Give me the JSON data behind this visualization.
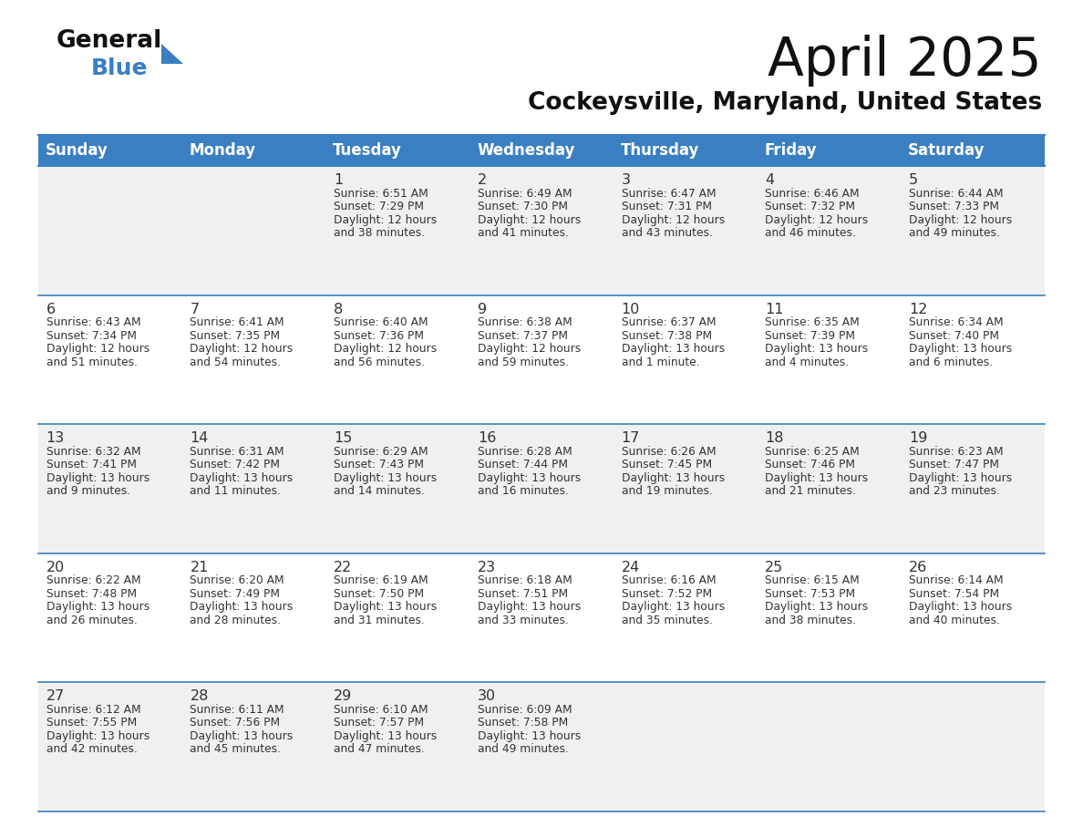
{
  "title": "April 2025",
  "subtitle": "Cockeysville, Maryland, United States",
  "header_bg": "#3A7FC1",
  "header_text_color": "#FFFFFF",
  "row_bg_even": "#F0F0F0",
  "row_bg_odd": "#FFFFFF",
  "border_color": "#3A7FC1",
  "day_headers": [
    "Sunday",
    "Monday",
    "Tuesday",
    "Wednesday",
    "Thursday",
    "Friday",
    "Saturday"
  ],
  "title_color": "#111111",
  "subtitle_color": "#111111",
  "cell_text_color": "#333333",
  "logo_general_color": "#111111",
  "logo_blue_color": "#3A7FC1",
  "logo_triangle_color": "#3A7FC1",
  "days": [
    {
      "day": null,
      "col": 0,
      "row": 0
    },
    {
      "day": null,
      "col": 1,
      "row": 0
    },
    {
      "day": 1,
      "col": 2,
      "row": 0,
      "sunrise": "6:51 AM",
      "sunset": "7:29 PM",
      "daylight_h": "12 hours",
      "daylight_m": "and 38 minutes."
    },
    {
      "day": 2,
      "col": 3,
      "row": 0,
      "sunrise": "6:49 AM",
      "sunset": "7:30 PM",
      "daylight_h": "12 hours",
      "daylight_m": "and 41 minutes."
    },
    {
      "day": 3,
      "col": 4,
      "row": 0,
      "sunrise": "6:47 AM",
      "sunset": "7:31 PM",
      "daylight_h": "12 hours",
      "daylight_m": "and 43 minutes."
    },
    {
      "day": 4,
      "col": 5,
      "row": 0,
      "sunrise": "6:46 AM",
      "sunset": "7:32 PM",
      "daylight_h": "12 hours",
      "daylight_m": "and 46 minutes."
    },
    {
      "day": 5,
      "col": 6,
      "row": 0,
      "sunrise": "6:44 AM",
      "sunset": "7:33 PM",
      "daylight_h": "12 hours",
      "daylight_m": "and 49 minutes."
    },
    {
      "day": 6,
      "col": 0,
      "row": 1,
      "sunrise": "6:43 AM",
      "sunset": "7:34 PM",
      "daylight_h": "12 hours",
      "daylight_m": "and 51 minutes."
    },
    {
      "day": 7,
      "col": 1,
      "row": 1,
      "sunrise": "6:41 AM",
      "sunset": "7:35 PM",
      "daylight_h": "12 hours",
      "daylight_m": "and 54 minutes."
    },
    {
      "day": 8,
      "col": 2,
      "row": 1,
      "sunrise": "6:40 AM",
      "sunset": "7:36 PM",
      "daylight_h": "12 hours",
      "daylight_m": "and 56 minutes."
    },
    {
      "day": 9,
      "col": 3,
      "row": 1,
      "sunrise": "6:38 AM",
      "sunset": "7:37 PM",
      "daylight_h": "12 hours",
      "daylight_m": "and 59 minutes."
    },
    {
      "day": 10,
      "col": 4,
      "row": 1,
      "sunrise": "6:37 AM",
      "sunset": "7:38 PM",
      "daylight_h": "13 hours",
      "daylight_m": "and 1 minute."
    },
    {
      "day": 11,
      "col": 5,
      "row": 1,
      "sunrise": "6:35 AM",
      "sunset": "7:39 PM",
      "daylight_h": "13 hours",
      "daylight_m": "and 4 minutes."
    },
    {
      "day": 12,
      "col": 6,
      "row": 1,
      "sunrise": "6:34 AM",
      "sunset": "7:40 PM",
      "daylight_h": "13 hours",
      "daylight_m": "and 6 minutes."
    },
    {
      "day": 13,
      "col": 0,
      "row": 2,
      "sunrise": "6:32 AM",
      "sunset": "7:41 PM",
      "daylight_h": "13 hours",
      "daylight_m": "and 9 minutes."
    },
    {
      "day": 14,
      "col": 1,
      "row": 2,
      "sunrise": "6:31 AM",
      "sunset": "7:42 PM",
      "daylight_h": "13 hours",
      "daylight_m": "and 11 minutes."
    },
    {
      "day": 15,
      "col": 2,
      "row": 2,
      "sunrise": "6:29 AM",
      "sunset": "7:43 PM",
      "daylight_h": "13 hours",
      "daylight_m": "and 14 minutes."
    },
    {
      "day": 16,
      "col": 3,
      "row": 2,
      "sunrise": "6:28 AM",
      "sunset": "7:44 PM",
      "daylight_h": "13 hours",
      "daylight_m": "and 16 minutes."
    },
    {
      "day": 17,
      "col": 4,
      "row": 2,
      "sunrise": "6:26 AM",
      "sunset": "7:45 PM",
      "daylight_h": "13 hours",
      "daylight_m": "and 19 minutes."
    },
    {
      "day": 18,
      "col": 5,
      "row": 2,
      "sunrise": "6:25 AM",
      "sunset": "7:46 PM",
      "daylight_h": "13 hours",
      "daylight_m": "and 21 minutes."
    },
    {
      "day": 19,
      "col": 6,
      "row": 2,
      "sunrise": "6:23 AM",
      "sunset": "7:47 PM",
      "daylight_h": "13 hours",
      "daylight_m": "and 23 minutes."
    },
    {
      "day": 20,
      "col": 0,
      "row": 3,
      "sunrise": "6:22 AM",
      "sunset": "7:48 PM",
      "daylight_h": "13 hours",
      "daylight_m": "and 26 minutes."
    },
    {
      "day": 21,
      "col": 1,
      "row": 3,
      "sunrise": "6:20 AM",
      "sunset": "7:49 PM",
      "daylight_h": "13 hours",
      "daylight_m": "and 28 minutes."
    },
    {
      "day": 22,
      "col": 2,
      "row": 3,
      "sunrise": "6:19 AM",
      "sunset": "7:50 PM",
      "daylight_h": "13 hours",
      "daylight_m": "and 31 minutes."
    },
    {
      "day": 23,
      "col": 3,
      "row": 3,
      "sunrise": "6:18 AM",
      "sunset": "7:51 PM",
      "daylight_h": "13 hours",
      "daylight_m": "and 33 minutes."
    },
    {
      "day": 24,
      "col": 4,
      "row": 3,
      "sunrise": "6:16 AM",
      "sunset": "7:52 PM",
      "daylight_h": "13 hours",
      "daylight_m": "and 35 minutes."
    },
    {
      "day": 25,
      "col": 5,
      "row": 3,
      "sunrise": "6:15 AM",
      "sunset": "7:53 PM",
      "daylight_h": "13 hours",
      "daylight_m": "and 38 minutes."
    },
    {
      "day": 26,
      "col": 6,
      "row": 3,
      "sunrise": "6:14 AM",
      "sunset": "7:54 PM",
      "daylight_h": "13 hours",
      "daylight_m": "and 40 minutes."
    },
    {
      "day": 27,
      "col": 0,
      "row": 4,
      "sunrise": "6:12 AM",
      "sunset": "7:55 PM",
      "daylight_h": "13 hours",
      "daylight_m": "and 42 minutes."
    },
    {
      "day": 28,
      "col": 1,
      "row": 4,
      "sunrise": "6:11 AM",
      "sunset": "7:56 PM",
      "daylight_h": "13 hours",
      "daylight_m": "and 45 minutes."
    },
    {
      "day": 29,
      "col": 2,
      "row": 4,
      "sunrise": "6:10 AM",
      "sunset": "7:57 PM",
      "daylight_h": "13 hours",
      "daylight_m": "and 47 minutes."
    },
    {
      "day": 30,
      "col": 3,
      "row": 4,
      "sunrise": "6:09 AM",
      "sunset": "7:58 PM",
      "daylight_h": "13 hours",
      "daylight_m": "and 49 minutes."
    },
    {
      "day": null,
      "col": 4,
      "row": 4
    },
    {
      "day": null,
      "col": 5,
      "row": 4
    },
    {
      "day": null,
      "col": 6,
      "row": 4
    }
  ]
}
